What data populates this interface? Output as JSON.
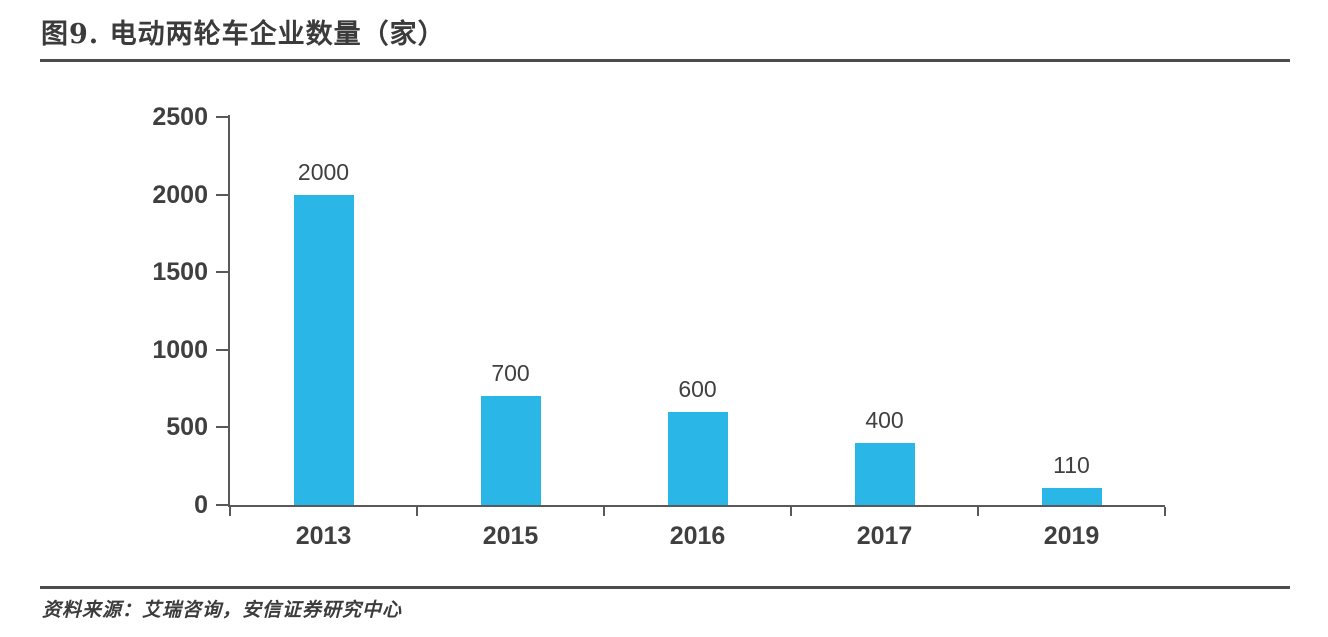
{
  "header": {
    "title": "图9. 电动两轮车企业数量（家）"
  },
  "footer": {
    "source": "资料来源：艾瑞咨询，安信证券研究中心"
  },
  "chart_data": {
    "type": "bar",
    "title": "电动两轮车企业数量（家）",
    "categories": [
      "2013",
      "2015",
      "2016",
      "2017",
      "2019"
    ],
    "values": [
      2000,
      700,
      600,
      400,
      110
    ],
    "data_labels_shown": true,
    "xlabel": "",
    "ylabel": "",
    "ylim": [
      0,
      2500
    ],
    "yticks": [
      0,
      500,
      1000,
      1500,
      2000,
      2500
    ],
    "grid": false,
    "legend": "none",
    "bar_color": "#2ab6e6",
    "axis_color": "#595959",
    "text_color": "#3f3f3f",
    "value_label_color": "#404040"
  }
}
